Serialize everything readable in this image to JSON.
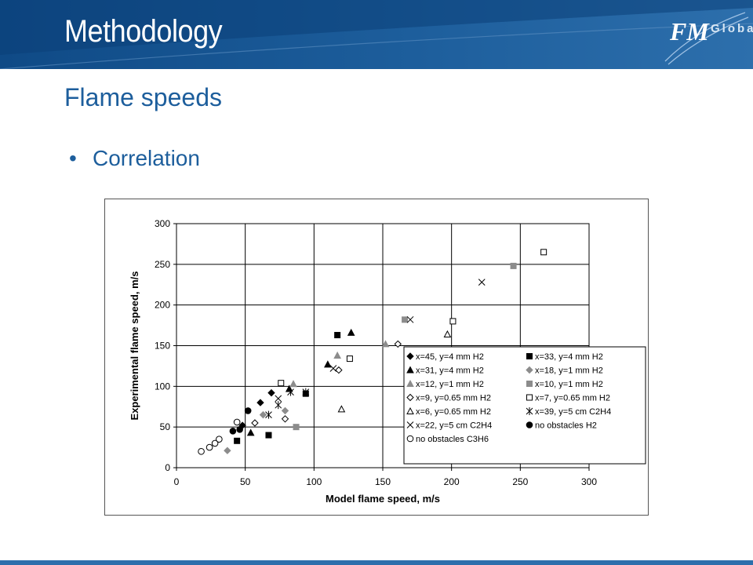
{
  "slide": {
    "title": "Methodology",
    "subtitle": "Flame speeds",
    "bullet": "Correlation",
    "logo_main": "FM",
    "logo_secondary": "Global"
  },
  "colors": {
    "header": "#1d5e9c",
    "text": "#1d5e9c",
    "series_black": "#000000",
    "series_gray": "#8c8c8c"
  },
  "chart_data": {
    "type": "scatter",
    "xlabel": "Model flame speed, m/s",
    "ylabel": "Experimental flame speed, m/s",
    "xlim": [
      0,
      300
    ],
    "ylim": [
      0,
      300
    ],
    "xticks": [
      0,
      50,
      100,
      150,
      200,
      250,
      300
    ],
    "yticks": [
      0,
      50,
      100,
      150,
      200,
      250,
      300
    ],
    "grid": true,
    "legend_position": "lower-right",
    "series": [
      {
        "name": "x=45, y=4 mm H2",
        "marker": "diamond-filled",
        "color": "#000000",
        "points": [
          [
            48,
            52
          ],
          [
            61,
            80
          ],
          [
            69,
            92
          ]
        ]
      },
      {
        "name": "x=33, y=4 mm H2",
        "marker": "square-filled",
        "color": "#000000",
        "points": [
          [
            44,
            33
          ],
          [
            67,
            40
          ],
          [
            94,
            91
          ],
          [
            117,
            163
          ]
        ]
      },
      {
        "name": "x=31, y=4 mm H2",
        "marker": "triangle-filled",
        "color": "#000000",
        "points": [
          [
            54,
            43
          ],
          [
            82,
            97
          ],
          [
            110,
            127
          ],
          [
            127,
            166
          ]
        ]
      },
      {
        "name": "x=18, y=1 mm H2",
        "marker": "diamond-filled",
        "color": "#8c8c8c",
        "points": [
          [
            37,
            21
          ],
          [
            63,
            65
          ],
          [
            79,
            70
          ]
        ]
      },
      {
        "name": "x=12, y=1 mm H2",
        "marker": "triangle-filled",
        "color": "#8c8c8c",
        "points": [
          [
            85,
            103
          ],
          [
            117,
            138
          ],
          [
            152,
            152
          ]
        ]
      },
      {
        "name": "x=10, y=1 mm H2",
        "marker": "square-filled",
        "color": "#8c8c8c",
        "points": [
          [
            87,
            50
          ],
          [
            166,
            182
          ],
          [
            245,
            248
          ]
        ]
      },
      {
        "name": "x=9, y=0.65 mm H2",
        "marker": "diamond-open",
        "color": "#000000",
        "points": [
          [
            57,
            55
          ],
          [
            79,
            60
          ],
          [
            118,
            120
          ],
          [
            161,
            152
          ]
        ]
      },
      {
        "name": "x=7, y=0.65 mm H2",
        "marker": "square-open",
        "color": "#000000",
        "points": [
          [
            76,
            104
          ],
          [
            126,
            134
          ],
          [
            201,
            180
          ],
          [
            267,
            265
          ]
        ]
      },
      {
        "name": "x=6, y=0.65 mm H2",
        "marker": "triangle-open",
        "color": "#000000",
        "points": [
          [
            120,
            72
          ],
          [
            197,
            164
          ]
        ]
      },
      {
        "name": "x=39, y=5 cm C2H4",
        "marker": "star",
        "color": "#000000",
        "points": [
          [
            67,
            65
          ],
          [
            74,
            77
          ],
          [
            83,
            93
          ],
          [
            94,
            93
          ]
        ]
      },
      {
        "name": "x=22, y=5 cm C2H4",
        "marker": "x",
        "color": "#000000",
        "points": [
          [
            74,
            85
          ],
          [
            114,
            122
          ],
          [
            170,
            182
          ],
          [
            222,
            228
          ]
        ]
      },
      {
        "name": "no obstacles H2",
        "marker": "circle-filled",
        "color": "#000000",
        "points": [
          [
            41,
            45
          ],
          [
            46,
            47
          ],
          [
            52,
            70
          ]
        ]
      },
      {
        "name": "no obstacles C3H6",
        "marker": "circle-open",
        "color": "#000000",
        "points": [
          [
            18,
            20
          ],
          [
            24,
            25
          ],
          [
            28,
            30
          ],
          [
            31,
            35
          ],
          [
            44,
            56
          ]
        ]
      }
    ]
  }
}
